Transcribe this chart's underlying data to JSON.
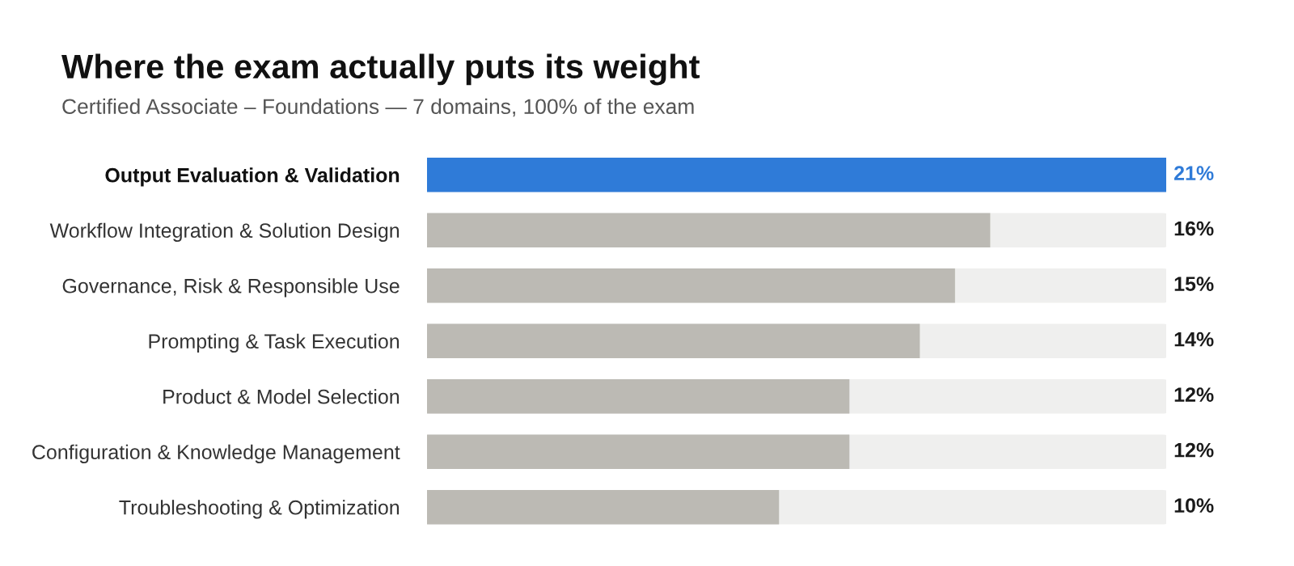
{
  "chart_data": {
    "type": "bar",
    "orientation": "horizontal",
    "title": "Where the exam actually puts its weight",
    "subtitle": "Certified Associate – Foundations — 7 domains, 100% of the exam",
    "categories": [
      "Output Evaluation & Validation",
      "Workflow Integration & Solution Design",
      "Governance, Risk & Responsible Use",
      "Prompting & Task Execution",
      "Product & Model Selection",
      "Configuration & Knowledge Management",
      "Troubleshooting & Optimization"
    ],
    "values": [
      21,
      16,
      15,
      14,
      12,
      12,
      10
    ],
    "value_labels": [
      "21%",
      "16%",
      "15%",
      "14%",
      "12%",
      "12%",
      "10%"
    ],
    "colors": [
      "#2f7bd8",
      "#bcbab4",
      "#bcbab4",
      "#bcbab4",
      "#bcbab4",
      "#bcbab4",
      "#bcbab4"
    ],
    "xlim": [
      0,
      21
    ],
    "tick_labels": "y",
    "grid": false,
    "legend": false
  }
}
